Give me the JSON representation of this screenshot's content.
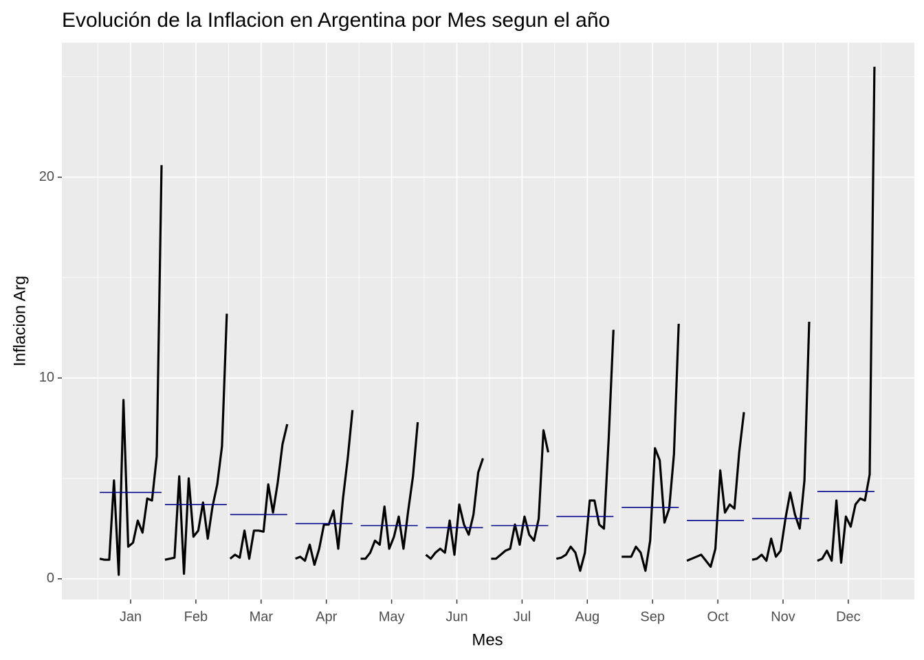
{
  "chart_data": {
    "type": "monthplot",
    "title": "Evolución de la Inflacion en Argentina por Mes segun el año",
    "x_label": "Mes",
    "y_label": "Inflacion Arg",
    "categories": [
      "Jan",
      "Feb",
      "Mar",
      "Apr",
      "May",
      "Jun",
      "Jul",
      "Aug",
      "Sep",
      "Oct",
      "Nov",
      "Dec"
    ],
    "values": [
      [
        1.0,
        0.95,
        0.95,
        4.9,
        0.2,
        8.9,
        1.6,
        1.8,
        2.9,
        2.3,
        4.0,
        3.9,
        6.1,
        20.6
      ],
      [
        0.95,
        1.0,
        1.05,
        5.1,
        0.25,
        5.0,
        2.1,
        2.4,
        3.8,
        2.0,
        3.6,
        4.7,
        6.6,
        13.2
      ],
      [
        1.0,
        1.2,
        1.05,
        2.4,
        1.0,
        2.4,
        2.4,
        2.35,
        4.7,
        3.3,
        4.8,
        6.7,
        7.7
      ],
      [
        1.0,
        1.1,
        0.9,
        1.7,
        0.7,
        1.5,
        2.7,
        2.7,
        3.4,
        1.5,
        4.0,
        6.0,
        8.4
      ],
      [
        1.0,
        1.0,
        1.3,
        1.9,
        1.7,
        3.6,
        1.5,
        2.1,
        3.1,
        1.5,
        3.4,
        5.1,
        7.8
      ],
      [
        1.2,
        1.0,
        1.3,
        1.5,
        1.3,
        2.9,
        1.2,
        3.7,
        2.7,
        2.2,
        3.2,
        5.3,
        6.0
      ],
      [
        1.0,
        1.0,
        1.2,
        1.4,
        1.5,
        2.7,
        1.7,
        3.1,
        2.2,
        1.9,
        3.0,
        7.4,
        6.3
      ],
      [
        1.0,
        1.05,
        1.2,
        1.6,
        1.3,
        0.4,
        1.3,
        3.9,
        3.9,
        2.7,
        2.5,
        7.0,
        12.4
      ],
      [
        1.1,
        1.1,
        1.1,
        1.6,
        1.3,
        0.4,
        1.9,
        6.5,
        5.9,
        2.8,
        3.5,
        6.2,
        12.7
      ],
      [
        0.9,
        1.0,
        1.1,
        1.2,
        0.9,
        0.6,
        1.5,
        5.4,
        3.3,
        3.7,
        3.5,
        6.3,
        8.3
      ],
      [
        0.95,
        1.0,
        1.2,
        0.9,
        2.0,
        1.1,
        1.4,
        3.0,
        4.3,
        3.2,
        2.5,
        4.9,
        12.8
      ],
      [
        0.9,
        1.0,
        1.4,
        0.9,
        3.9,
        0.8,
        3.1,
        2.6,
        3.7,
        4.0,
        3.9,
        5.2,
        25.5
      ]
    ],
    "means": [
      4.3,
      3.7,
      3.2,
      2.75,
      2.65,
      2.55,
      2.65,
      3.1,
      3.55,
      2.9,
      3.0,
      4.35
    ],
    "color": "#000000",
    "mean_color": "#00008b",
    "ylim": [
      -1.03,
      26.7
    ],
    "yticks": [
      0,
      10,
      20
    ],
    "grid": true
  }
}
